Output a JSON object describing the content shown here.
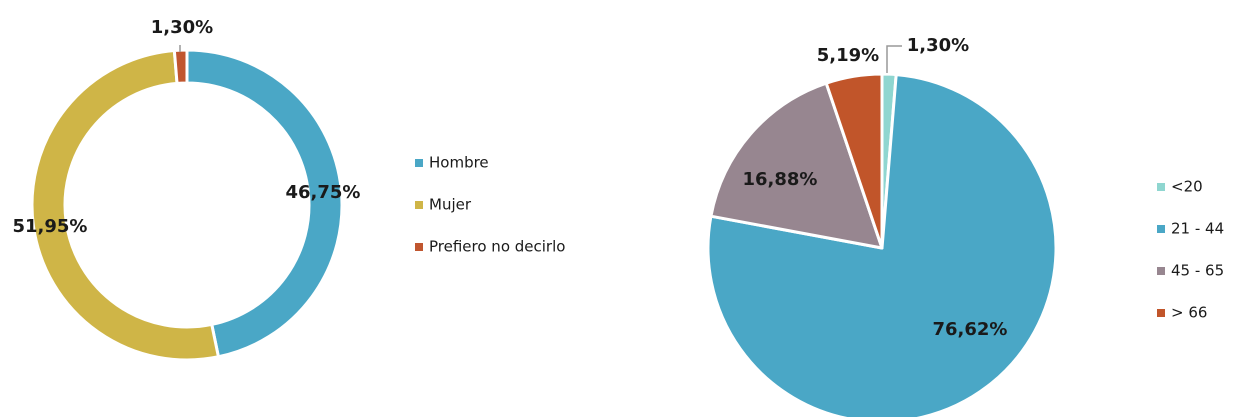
{
  "chart_data": [
    {
      "type": "donut",
      "categories": [
        "Hombre",
        "Mujer",
        "Prefiero no decirlo"
      ],
      "values": [
        46.75,
        51.95,
        1.3
      ],
      "value_labels": [
        "46,75%",
        "51,95%",
        "1,30%"
      ],
      "colors": [
        "#4aa7c6",
        "#cfb547",
        "#c0562f"
      ]
    },
    {
      "type": "pie",
      "categories": [
        "<20",
        "21 - 44",
        "45 - 65",
        "> 66"
      ],
      "values": [
        1.3,
        76.62,
        16.88,
        5.19
      ],
      "value_labels": [
        "1,30%",
        "76,62%",
        "16,88%",
        "5,19%"
      ],
      "colors": [
        "#8fd6d0",
        "#4aa7c6",
        "#978690",
        "#c1552a"
      ]
    }
  ]
}
